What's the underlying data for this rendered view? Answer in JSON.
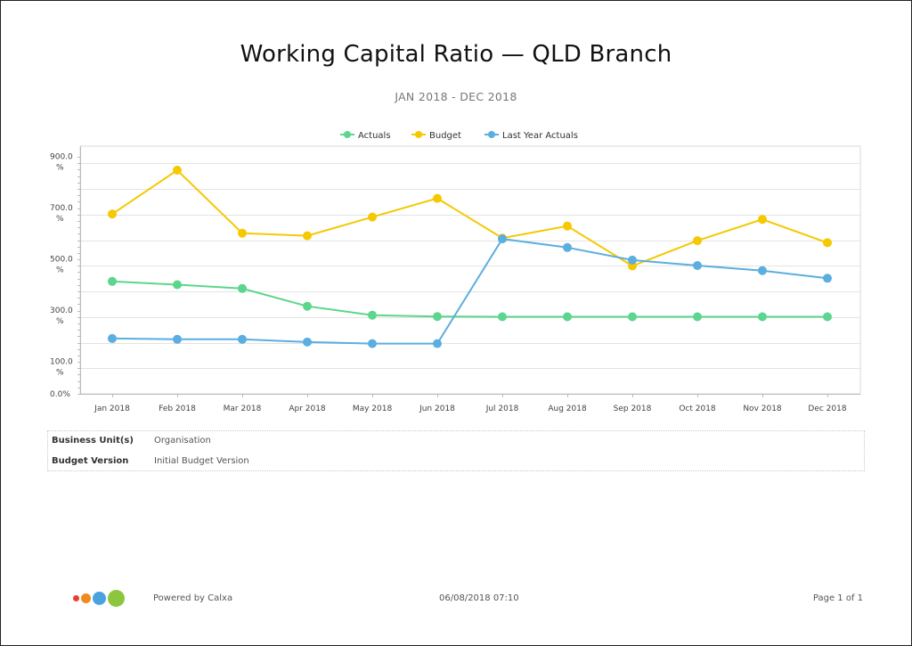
{
  "report": {
    "title": "Working Capital Ratio — QLD Branch",
    "subtitle": "JAN 2018 - DEC 2018"
  },
  "chart_data": {
    "type": "line",
    "categories": [
      "Jan 2018",
      "Feb 2018",
      "Mar 2018",
      "Apr 2018",
      "May 2018",
      "Jun 2018",
      "Jul 2018",
      "Aug 2018",
      "Sep 2018",
      "Oct 2018",
      "Nov 2018",
      "Dec 2018"
    ],
    "series": [
      {
        "name": "Actuals",
        "color": "#5bd68c",
        "values": [
          439,
          426,
          411,
          342,
          307,
          302,
          301,
          301,
          301,
          301,
          301,
          301
        ]
      },
      {
        "name": "Budget",
        "color": "#f5c800",
        "values": [
          702,
          873,
          627,
          617,
          690,
          763,
          608,
          655,
          499,
          598,
          681,
          590
        ]
      },
      {
        "name": "Last Year Actuals",
        "color": "#5aaee0",
        "values": [
          216,
          213,
          213,
          202,
          196,
          196,
          605,
          571,
          522,
          501,
          481,
          451
        ]
      }
    ],
    "ytick_labels": [
      {
        "value": 0,
        "label": "0.0%"
      },
      {
        "value": 100,
        "label": "100.0 %"
      },
      {
        "value": 300,
        "label": "300.0 %"
      },
      {
        "value": 500,
        "label": "500.0 %"
      },
      {
        "value": 700,
        "label": "700.0 %"
      },
      {
        "value": 900,
        "label": "900.0 %"
      }
    ],
    "ylim": [
      0,
      950
    ],
    "grid": true,
    "legend_position": "top-center"
  },
  "info": {
    "rows": [
      {
        "key": "Business Unit(s)",
        "value": "Organisation"
      },
      {
        "key": "Budget Version",
        "value": "Initial Budget Version"
      }
    ]
  },
  "footer": {
    "powered_by": "Powered by Calxa",
    "timestamp": "06/08/2018 07:10",
    "page": "Page 1 of 1",
    "logo_colors": [
      "#e8402e",
      "#f08a1c",
      "#4aa3df",
      "#8cc63f"
    ]
  }
}
